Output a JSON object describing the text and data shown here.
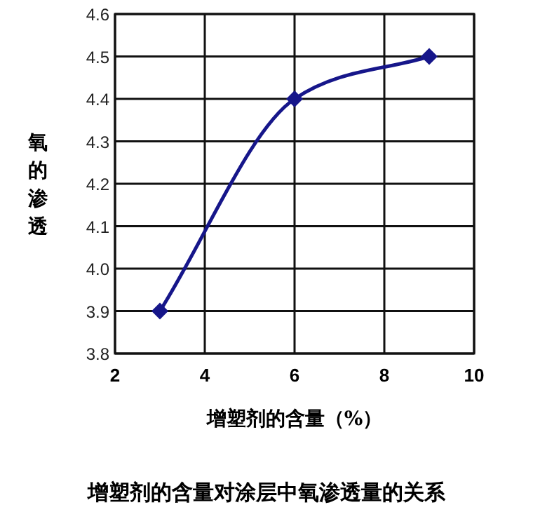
{
  "chart_data": {
    "type": "line",
    "xlabel": "增塑剂的含量（%）",
    "ylabel": "氧的渗透",
    "title": "增塑剂的含量对涂层中氧渗透量的关系",
    "x": [
      3,
      6,
      9
    ],
    "series": [
      {
        "color": "#16168a",
        "values": [
          3.9,
          4.4,
          4.5
        ]
      }
    ],
    "xlim": [
      2,
      10
    ],
    "xticks": [
      2,
      4,
      6,
      8,
      10
    ],
    "ylim": [
      3.8,
      4.6
    ],
    "yticks": [
      3.8,
      3.9,
      {
        "value": 4,
        "label": "4.0"
      },
      4.1,
      4.2,
      4.3,
      4.4,
      4.5,
      4.6
    ],
    "grid": true,
    "marker": "diamond",
    "line_style": "solid"
  }
}
